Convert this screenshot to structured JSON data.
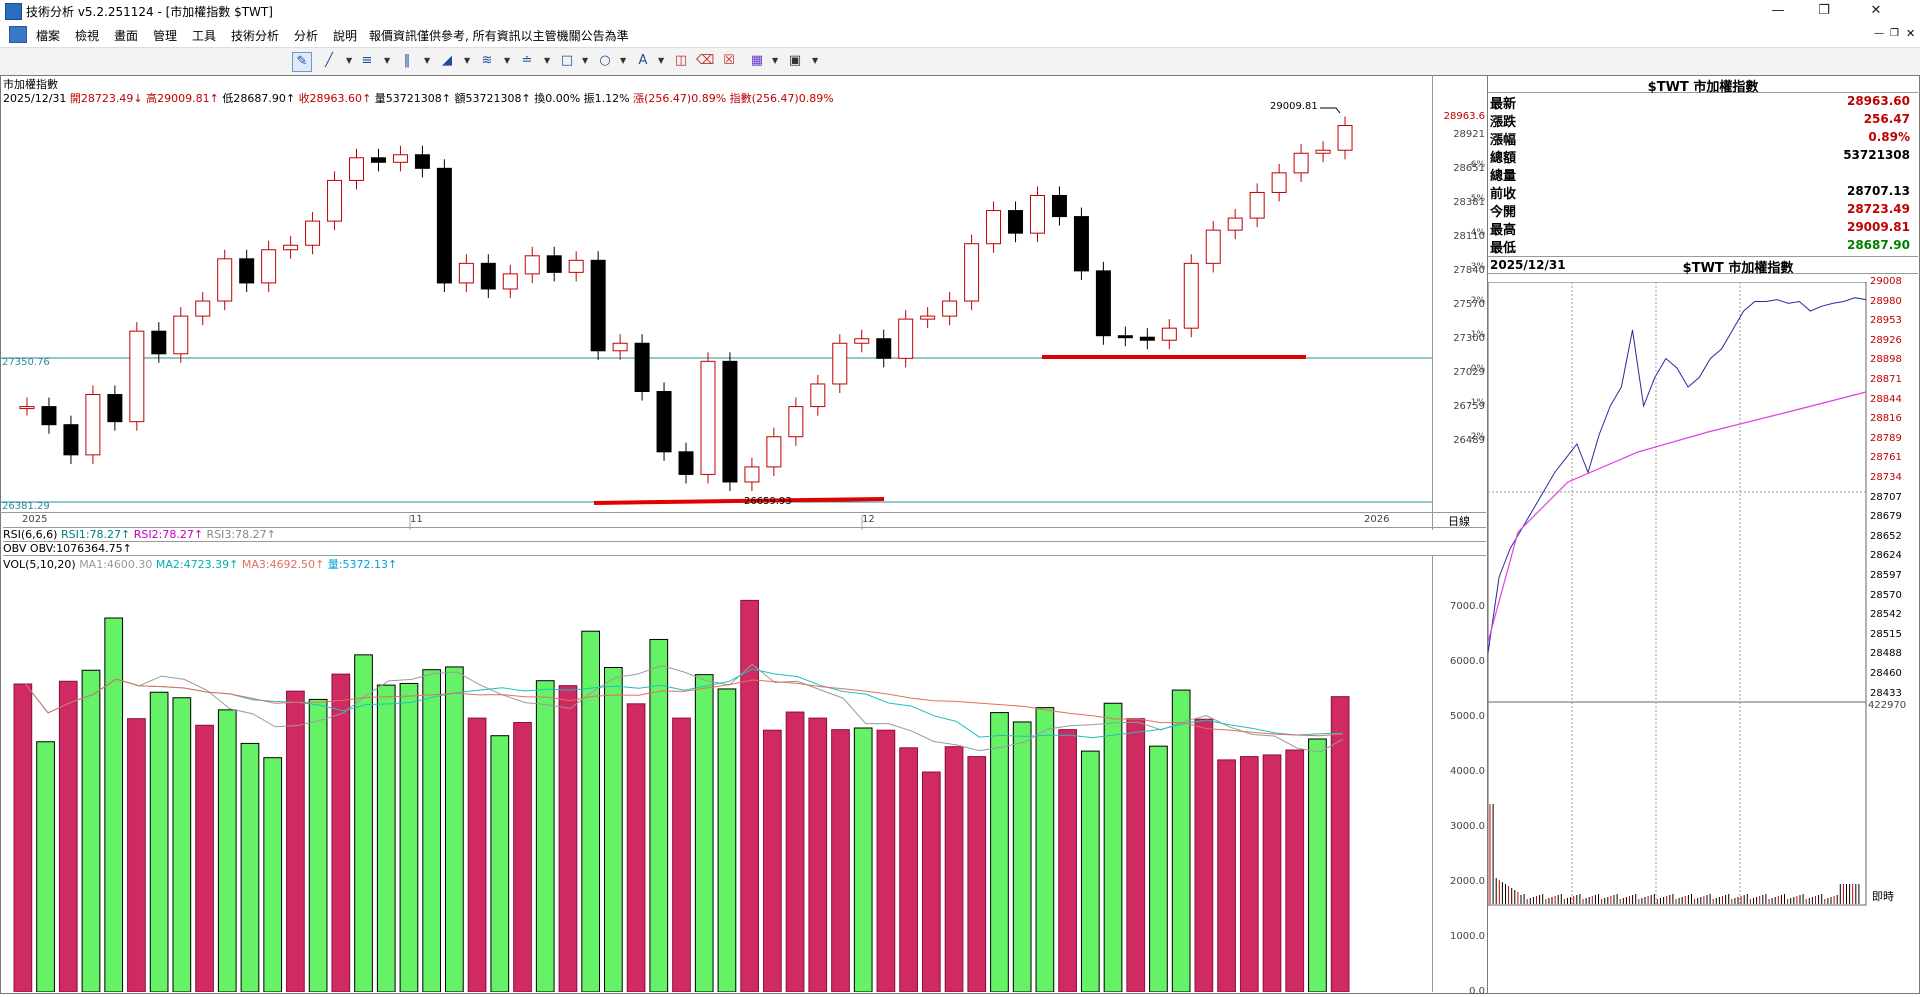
{
  "window": {
    "title": "技術分析 v5.2.251124 - [市加權指數 $TWT]"
  },
  "menu": {
    "items": [
      "檔案",
      "檢視",
      "畫面",
      "管理",
      "工具",
      "技術分析",
      "分析",
      "說明"
    ],
    "notice": "報價資訊僅供參考, 所有資訊以主管機關公告為準"
  },
  "main_chart": {
    "title": "市加權指數",
    "date": "2025/12/31",
    "open": "開28723.49",
    "high": "高29009.81",
    "low": "低28687.90",
    "close": "收28963.60",
    "volume": "量53721308",
    "amount": "額53721308",
    "turnover": "換0.00%",
    "amplitude": "振1.12%",
    "change": "漲(256.47)0.89%",
    "index_change": "指數(256.47)0.89%",
    "high_marker": "29009.81",
    "low_marker": "26659.93",
    "left_level_upper": "27350.76",
    "left_level_lower": "26381.29",
    "price_axis": [
      "28963.6",
      "28921",
      "28651",
      "28381",
      "28110",
      "27840",
      "27570",
      "27300",
      "27029",
      "26759",
      "26489"
    ],
    "pct_axis": [
      "6%",
      "5%",
      "4%",
      "3%",
      "2%",
      "1%",
      "0%",
      "-1%",
      "-2%"
    ],
    "time_labels": [
      "2025",
      "11",
      "12",
      "2026"
    ],
    "period_label": "日線",
    "colors": {
      "up": "#c00000",
      "down": "#000000",
      "support": "#e00000",
      "level": "#2a8a9a"
    }
  },
  "indicators": {
    "rsi": {
      "label": "RSI(6,6,6)",
      "v1": "RSI1:78.27",
      "v2": "RSI2:78.27",
      "v3": "RSI3:78.27"
    },
    "obv": {
      "label": "OBV",
      "v1": "OBV:1076364.75"
    },
    "vol": {
      "label": "VOL(5,10,20)",
      "ma1": "MA1:4600.30",
      "ma2": "MA2:4723.39",
      "ma3": "MA3:4692.50",
      "qty": "量:5372.13"
    },
    "vol_axis": [
      "7000.0",
      "6000.0",
      "5000.0",
      "4000.0",
      "3000.0",
      "2000.0",
      "1000.0",
      "0.0"
    ]
  },
  "quote": {
    "title": "$TWT 市加權指數",
    "rows": [
      {
        "label": "最新",
        "value": "28963.60",
        "color": "#c00000"
      },
      {
        "label": "漲跌",
        "value": "256.47",
        "color": "#c00000"
      },
      {
        "label": "漲幅",
        "value": "0.89%",
        "color": "#c00000"
      },
      {
        "label": "總額",
        "value": "53721308",
        "color": "#000000"
      },
      {
        "label": "總量",
        "value": "",
        "color": "#000000"
      },
      {
        "label": "前收",
        "value": "28707.13",
        "color": "#000000"
      },
      {
        "label": "今開",
        "value": "28723.49",
        "color": "#c00000"
      },
      {
        "label": "最高",
        "value": "29009.81",
        "color": "#c00000"
      },
      {
        "label": "最低",
        "value": "28687.90",
        "color": "#008000"
      }
    ]
  },
  "intraday": {
    "date": "2025/12/31",
    "title": "$TWT 市加權指數",
    "price_axis": [
      "29008",
      "28980",
      "28953",
      "28926",
      "28898",
      "28871",
      "28844",
      "28816",
      "28789",
      "28761",
      "28734",
      "28707",
      "28679",
      "28652",
      "28624",
      "28597",
      "28570",
      "28542",
      "28515",
      "28488",
      "28460",
      "28433"
    ],
    "volume_top": "422970",
    "realtime_label": "即時"
  }
}
